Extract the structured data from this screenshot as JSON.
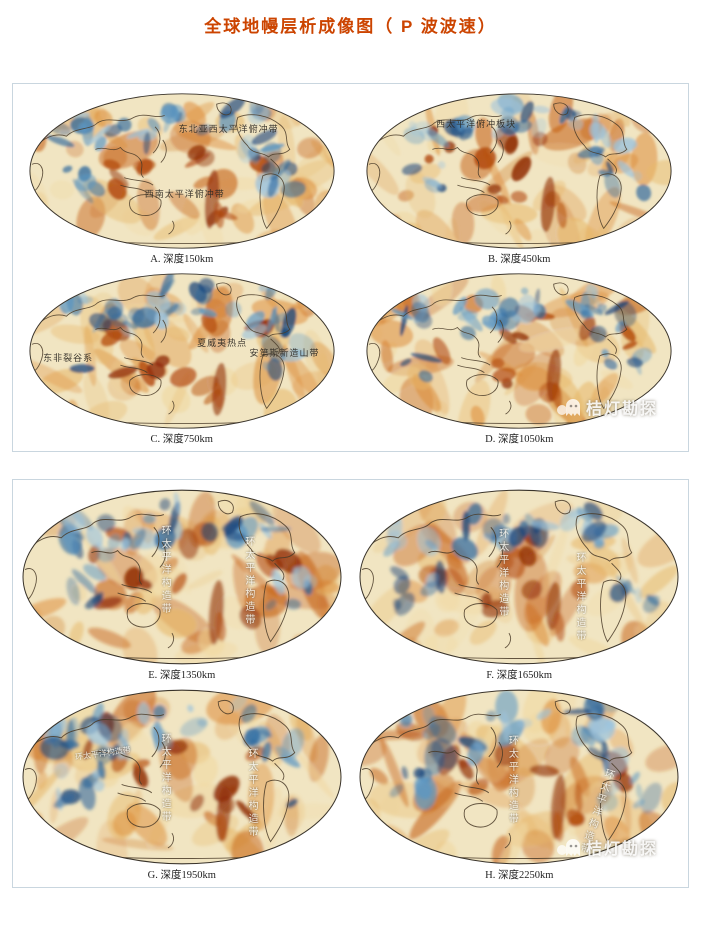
{
  "page": {
    "title": "全球地幔层析成像图（ P 波波速）",
    "title_color": "#cc4400",
    "background": "#ffffff"
  },
  "watermark": {
    "text": "桔灯勘探",
    "icon": "ghost-icon"
  },
  "palette": {
    "map_base": "#f1e5c2",
    "warm": [
      "#f0d79f",
      "#e7b86a",
      "#dd8f3c",
      "#c55f13"
    ],
    "hot": [
      "#b34a0c",
      "#8f2b06"
    ],
    "cool": [
      "#9cc3dd",
      "#5b97c4",
      "#2a659c",
      "#123f78"
    ],
    "coast": "#4a3b28",
    "panel_border": "#c9d6df"
  },
  "panels": [
    {
      "name": "upper-mantle-panel",
      "maps": [
        {
          "label": "A",
          "caption": "A. 深度150km",
          "annotations": [
            {
              "text": "东北亚西太平洋俯冲带"
            },
            {
              "text": "西南太平洋俯冲带"
            }
          ]
        },
        {
          "label": "B",
          "caption": "B. 深度450km",
          "annotations": [
            {
              "text": "西太平洋俯冲板块"
            }
          ]
        },
        {
          "label": "C",
          "caption": "C. 深度750km",
          "annotations": [
            {
              "text": "东非裂谷系"
            },
            {
              "text": "夏威夷热点"
            },
            {
              "text": "安第斯新造山带"
            }
          ]
        },
        {
          "label": "D",
          "caption": "D. 深度1050km",
          "annotations": []
        }
      ]
    },
    {
      "name": "lower-mantle-panel",
      "maps": [
        {
          "label": "E",
          "caption": "E. 深度1350km",
          "annotations": [
            {
              "text": "环太平洋构造带"
            },
            {
              "text": "环太平洋构造带"
            }
          ]
        },
        {
          "label": "F",
          "caption": "F. 深度1650km",
          "annotations": [
            {
              "text": "环太平洋构造带"
            },
            {
              "text": "环太平洋构造带"
            }
          ]
        },
        {
          "label": "G",
          "caption": "G. 深度1950km",
          "annotations": [
            {
              "text": "环太平洋构造带"
            },
            {
              "text": "环太平洋构造带"
            },
            {
              "text": "环太平洋构造带"
            }
          ]
        },
        {
          "label": "H",
          "caption": "H. 深度2250km",
          "annotations": [
            {
              "text": "环太平洋构造带"
            },
            {
              "text": "环太平洋构造带"
            }
          ]
        }
      ]
    }
  ]
}
